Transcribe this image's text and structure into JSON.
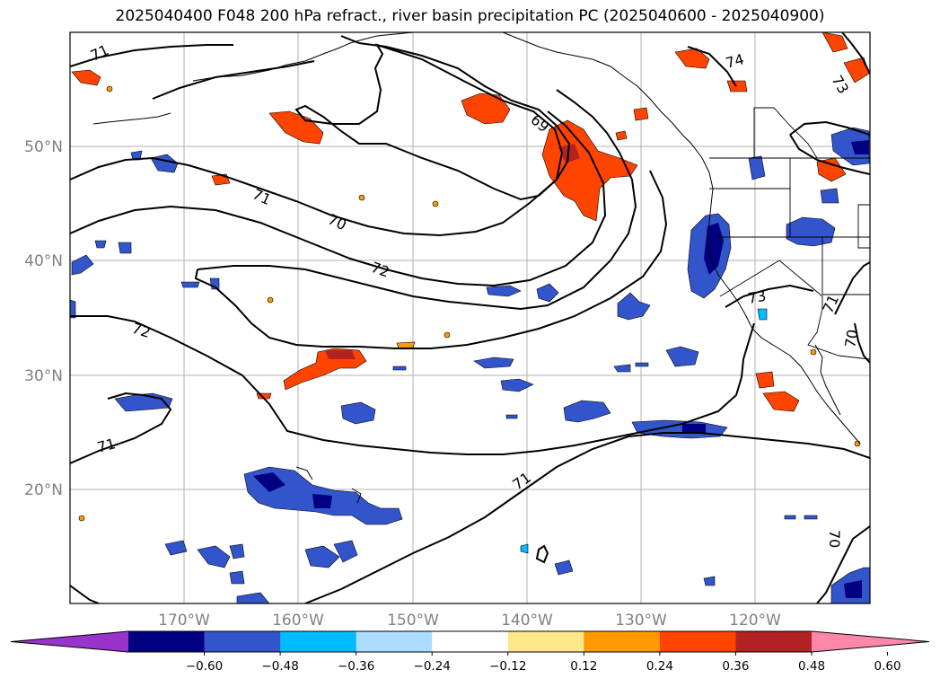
{
  "title": "2025040400 F048 200 hPa refract., river basin precipitation PC (2025040600 - 2025040900)",
  "lat_labels": [
    "50°N",
    "40°N",
    "30°N",
    "20°N"
  ],
  "lon_labels": [
    "170°W",
    "160°W",
    "150°W",
    "140°W",
    "130°W",
    "120°W"
  ],
  "contour_labels": [
    "71",
    "69",
    "74",
    "73",
    "71",
    "70",
    "72",
    "72",
    "73",
    "71",
    "70",
    "71",
    "71",
    "70"
  ],
  "colorbar": {
    "ticks": [
      "−0.60",
      "−0.48",
      "−0.36",
      "−0.24",
      "−0.12",
      "0.12",
      "0.24",
      "0.36",
      "0.48",
      "0.60"
    ],
    "colors": [
      "#9933cc",
      "#000080",
      "#3355cc",
      "#00bbff",
      "#aaddff",
      "#ffffff",
      "#ffe88a",
      "#ff9900",
      "#ff4400",
      "#b22222",
      "#ff88aa"
    ]
  },
  "colors": {
    "neg_strong": "#000080",
    "neg_mid": "#3355cc",
    "neg_light": "#00bbff",
    "neg_faint": "#aaddff",
    "pos_faint": "#ffe88a",
    "pos_light": "#ff9900",
    "pos_mid": "#ff4400",
    "pos_strong": "#b22222"
  }
}
